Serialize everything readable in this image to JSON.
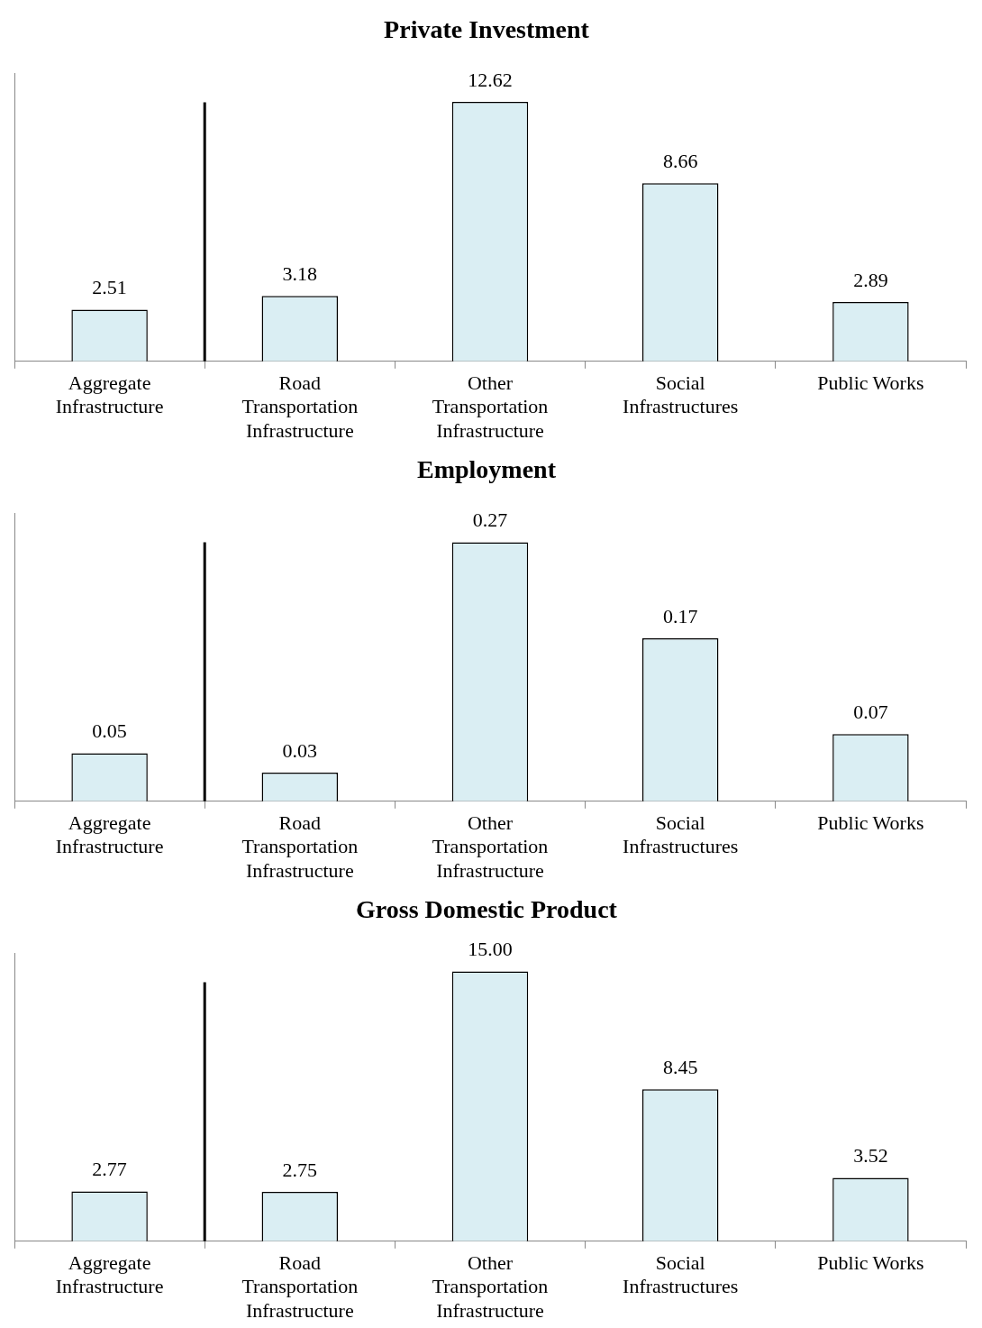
{
  "chart_data": [
    {
      "type": "bar",
      "title": "Private Investment",
      "categories": [
        "Aggregate Infrastructure",
        "Road Transportation Infrastructure",
        "Other Transportation Infrastructure",
        "Social Infrastructures",
        "Public Works"
      ],
      "values": [
        2.51,
        3.18,
        12.62,
        8.66,
        2.89
      ],
      "value_labels": [
        "2.51",
        "3.18",
        "12.62",
        "8.66",
        "2.89"
      ],
      "color": "#daeef3",
      "tick_labels": "x"
    },
    {
      "type": "bar",
      "title": "Employment",
      "categories": [
        "Aggregate Infrastructure",
        "Road Transportation Infrastructure",
        "Other Transportation Infrastructure",
        "Social Infrastructures",
        "Public Works"
      ],
      "values": [
        0.05,
        0.03,
        0.27,
        0.17,
        0.07
      ],
      "value_labels": [
        "0.05",
        "0.03",
        "0.27",
        "0.17",
        "0.07"
      ],
      "color": "#daeef3",
      "tick_labels": "x"
    },
    {
      "type": "bar",
      "title": "Gross Domestic Product",
      "categories": [
        "Aggregate Infrastructure",
        "Road Transportation Infrastructure",
        "Other Transportation Infrastructure",
        "Social Infrastructures",
        "Public Works"
      ],
      "values": [
        2.77,
        2.75,
        15.0,
        8.45,
        3.52
      ],
      "value_labels": [
        "2.77",
        "2.75",
        "15.00",
        "8.45",
        "3.52"
      ],
      "color": "#daeef3",
      "tick_labels": "x"
    }
  ]
}
